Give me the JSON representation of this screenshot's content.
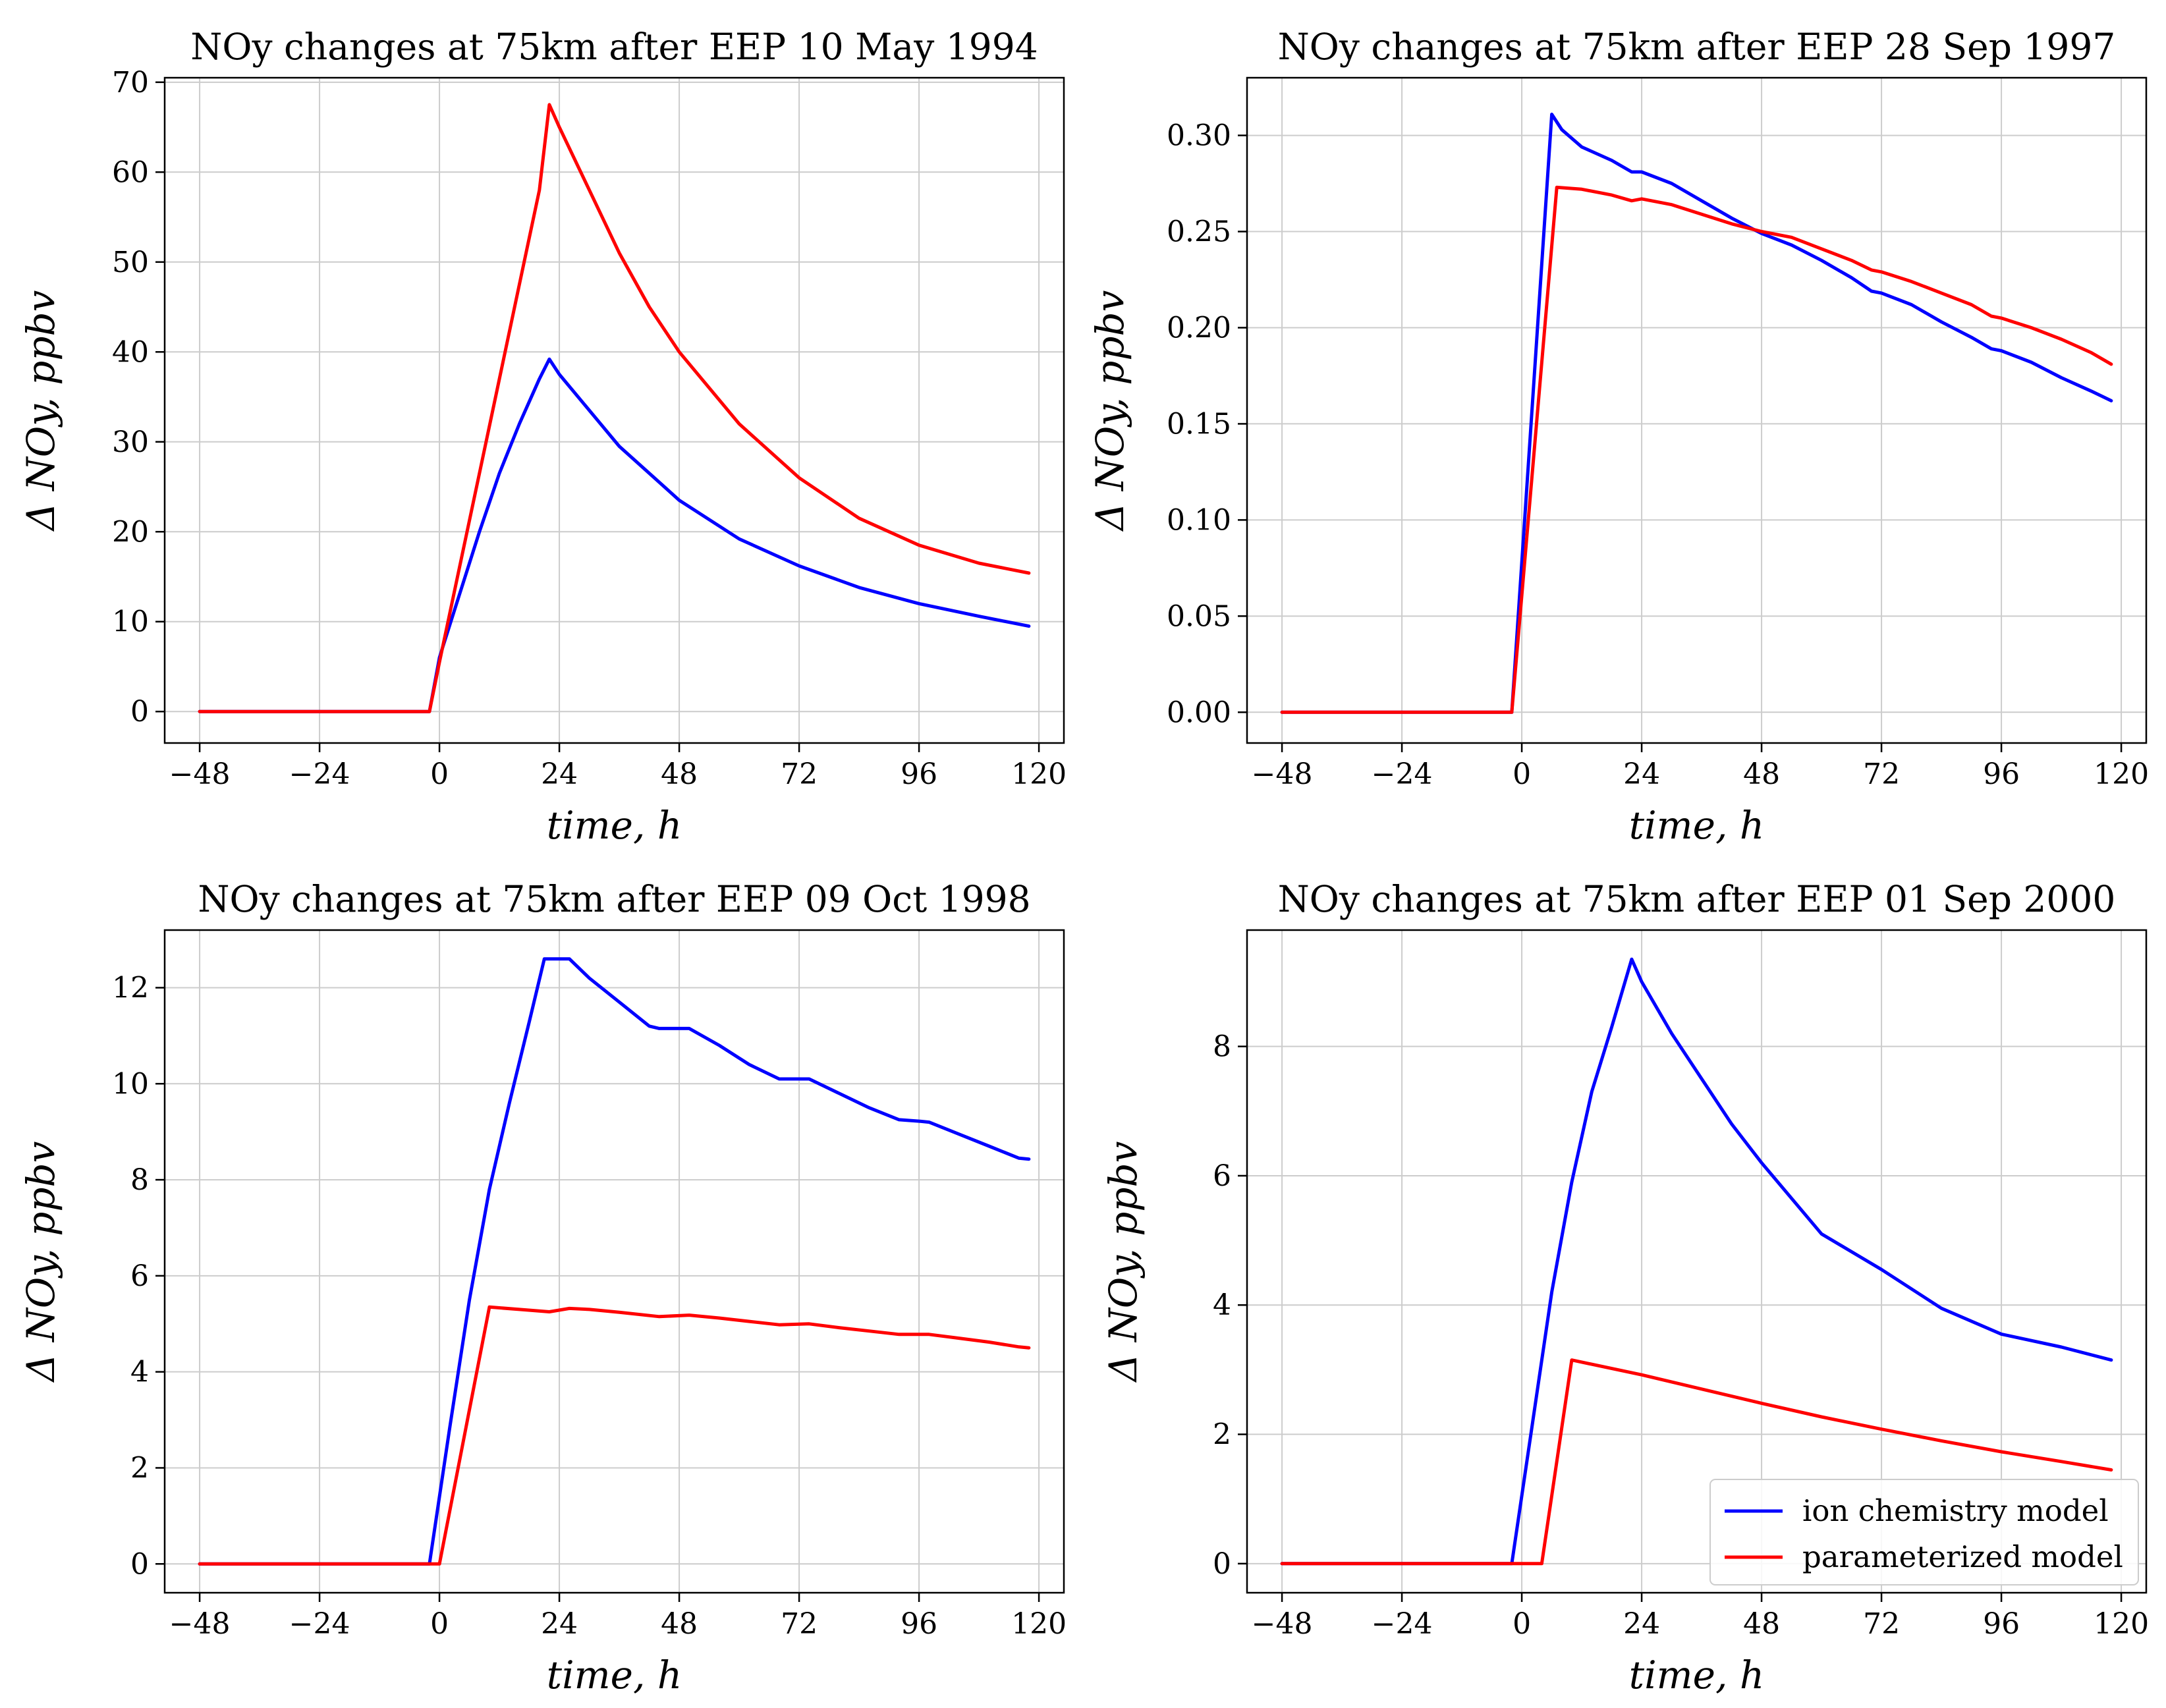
{
  "figure": {
    "legend": [
      {
        "name": "ion chemistry model",
        "color": "#0000ff"
      },
      {
        "name": "parameterized model",
        "color": "#ff0000"
      }
    ]
  },
  "chart_data": [
    {
      "type": "line",
      "title": "NOy changes at 75km after EEP 10 May 1994",
      "xlabel": "time, h",
      "ylabel": "Δ NOy,  ppbv",
      "xlim": [
        -55,
        125
      ],
      "ylim": [
        -3.5,
        70.5
      ],
      "xticks": [
        -48,
        -24,
        0,
        24,
        48,
        72,
        96,
        120
      ],
      "xtick_labels": [
        "−48",
        "−24",
        "0",
        "24",
        "48",
        "72",
        "96",
        "120"
      ],
      "yticks": [
        0,
        10,
        20,
        30,
        40,
        50,
        60,
        70
      ],
      "ytick_labels": [
        "0",
        "10",
        "20",
        "30",
        "40",
        "50",
        "60",
        "70"
      ],
      "grid": true,
      "series": [
        {
          "name": "ion chemistry model",
          "color": "#0000ff",
          "x": [
            -48,
            -2,
            0,
            4,
            8,
            12,
            16,
            20,
            22,
            24,
            30,
            36,
            42,
            48,
            60,
            72,
            84,
            96,
            108,
            118
          ],
          "y": [
            0,
            0,
            6,
            13,
            20,
            26.5,
            32,
            37,
            39.2,
            37.5,
            33.5,
            29.5,
            26.5,
            23.5,
            19.2,
            16.2,
            13.8,
            12,
            10.6,
            9.5
          ]
        },
        {
          "name": "parameterized model",
          "color": "#ff0000",
          "x": [
            -48,
            -2,
            0,
            4,
            8,
            12,
            16,
            20,
            22,
            24,
            30,
            36,
            42,
            48,
            60,
            72,
            84,
            96,
            108,
            118
          ],
          "y": [
            0,
            0,
            5.5,
            16,
            26.5,
            37,
            47.5,
            58,
            67.5,
            65,
            58,
            51,
            45,
            40,
            32,
            26,
            21.5,
            18.5,
            16.5,
            15.4
          ]
        }
      ]
    },
    {
      "type": "line",
      "title": "NOy changes at 75km after EEP 28 Sep 1997",
      "xlabel": "time, h",
      "ylabel": "Δ NOy,  ppbv",
      "xlim": [
        -55,
        125
      ],
      "ylim": [
        -0.016,
        0.33
      ],
      "xticks": [
        -48,
        -24,
        0,
        24,
        48,
        72,
        96,
        120
      ],
      "xtick_labels": [
        "−48",
        "−24",
        "0",
        "24",
        "48",
        "72",
        "96",
        "120"
      ],
      "yticks": [
        0,
        0.05,
        0.1,
        0.15,
        0.2,
        0.25,
        0.3
      ],
      "ytick_labels": [
        "0.00",
        "0.05",
        "0.10",
        "0.15",
        "0.20",
        "0.25",
        "0.30"
      ],
      "grid": true,
      "series": [
        {
          "name": "ion chemistry model",
          "color": "#0000ff",
          "x": [
            -48,
            -2,
            6,
            8,
            12,
            18,
            22,
            24,
            30,
            36,
            42,
            48,
            54,
            60,
            66,
            70,
            72,
            78,
            84,
            90,
            94,
            96,
            102,
            108,
            114,
            118
          ],
          "y": [
            0,
            0,
            0.311,
            0.303,
            0.294,
            0.287,
            0.281,
            0.281,
            0.275,
            0.266,
            0.257,
            0.249,
            0.243,
            0.235,
            0.226,
            0.219,
            0.218,
            0.212,
            0.203,
            0.195,
            0.189,
            0.188,
            0.182,
            0.174,
            0.167,
            0.162
          ]
        },
        {
          "name": "parameterized model",
          "color": "#ff0000",
          "x": [
            -48,
            -2,
            7,
            12,
            18,
            22,
            24,
            30,
            36,
            42,
            48,
            54,
            60,
            66,
            70,
            72,
            78,
            84,
            90,
            94,
            96,
            102,
            108,
            114,
            118
          ],
          "y": [
            0,
            0,
            0.273,
            0.272,
            0.269,
            0.266,
            0.267,
            0.264,
            0.259,
            0.254,
            0.25,
            0.247,
            0.241,
            0.235,
            0.23,
            0.229,
            0.224,
            0.218,
            0.212,
            0.206,
            0.205,
            0.2,
            0.194,
            0.187,
            0.181
          ]
        }
      ]
    },
    {
      "type": "line",
      "title": "NOy changes at 75km after EEP 09 Oct 1998",
      "xlabel": "time, h",
      "ylabel": "Δ NOy,  ppbv",
      "xlim": [
        -55,
        125
      ],
      "ylim": [
        -0.6,
        13.2
      ],
      "xticks": [
        -48,
        -24,
        0,
        24,
        48,
        72,
        96,
        120
      ],
      "xtick_labels": [
        "−48",
        "−24",
        "0",
        "24",
        "48",
        "72",
        "96",
        "120"
      ],
      "yticks": [
        0,
        2,
        4,
        6,
        8,
        10,
        12
      ],
      "ytick_labels": [
        "0",
        "2",
        "4",
        "6",
        "8",
        "10",
        "12"
      ],
      "grid": true,
      "series": [
        {
          "name": "ion chemistry model",
          "color": "#0000ff",
          "x": [
            -48,
            -2,
            2,
            6,
            10,
            14,
            18,
            21,
            22,
            26,
            30,
            36,
            42,
            44,
            50,
            56,
            62,
            68,
            72,
            74,
            80,
            86,
            92,
            96,
            98,
            104,
            110,
            116,
            118
          ],
          "y": [
            0,
            0,
            2.8,
            5.5,
            7.8,
            9.6,
            11.3,
            12.6,
            12.6,
            12.6,
            12.2,
            11.7,
            11.2,
            11.15,
            11.15,
            10.8,
            10.4,
            10.1,
            10.1,
            10.1,
            9.8,
            9.5,
            9.25,
            9.22,
            9.2,
            8.95,
            8.7,
            8.45,
            8.43
          ]
        },
        {
          "name": "parameterized model",
          "color": "#ff0000",
          "x": [
            -48,
            0,
            10,
            16,
            22,
            26,
            30,
            36,
            44,
            50,
            56,
            62,
            68,
            74,
            80,
            86,
            92,
            98,
            104,
            110,
            116,
            118
          ],
          "y": [
            0,
            0,
            5.35,
            5.3,
            5.25,
            5.32,
            5.3,
            5.24,
            5.15,
            5.18,
            5.12,
            5.05,
            4.98,
            5.0,
            4.92,
            4.85,
            4.78,
            4.78,
            4.7,
            4.62,
            4.52,
            4.5
          ]
        }
      ]
    },
    {
      "type": "line",
      "title": "NOy changes at 75km after EEP 01 Sep 2000",
      "xlabel": "time, h",
      "ylabel": "Δ NOy,  ppbv",
      "xlim": [
        -55,
        125
      ],
      "ylim": [
        -0.45,
        9.8
      ],
      "xticks": [
        -48,
        -24,
        0,
        24,
        48,
        72,
        96,
        120
      ],
      "xtick_labels": [
        "−48",
        "−24",
        "0",
        "24",
        "48",
        "72",
        "96",
        "120"
      ],
      "yticks": [
        0,
        2,
        4,
        6,
        8
      ],
      "ytick_labels": [
        "0",
        "2",
        "4",
        "6",
        "8"
      ],
      "grid": true,
      "legend_position": "lower right",
      "series": [
        {
          "name": "ion chemistry model",
          "color": "#0000ff",
          "x": [
            -48,
            -2,
            2,
            6,
            10,
            14,
            18,
            22,
            24,
            30,
            36,
            42,
            48,
            60,
            72,
            84,
            96,
            108,
            118
          ],
          "y": [
            0,
            0,
            2.1,
            4.2,
            5.9,
            7.3,
            8.3,
            9.35,
            9.0,
            8.2,
            7.5,
            6.8,
            6.2,
            5.1,
            4.55,
            3.95,
            3.55,
            3.35,
            3.15
          ]
        },
        {
          "name": "parameterized model",
          "color": "#ff0000",
          "x": [
            -48,
            4,
            10,
            24,
            36,
            48,
            60,
            72,
            84,
            96,
            108,
            118
          ],
          "y": [
            0,
            0,
            3.15,
            2.92,
            2.7,
            2.48,
            2.27,
            2.08,
            1.9,
            1.73,
            1.58,
            1.45
          ]
        }
      ]
    }
  ]
}
